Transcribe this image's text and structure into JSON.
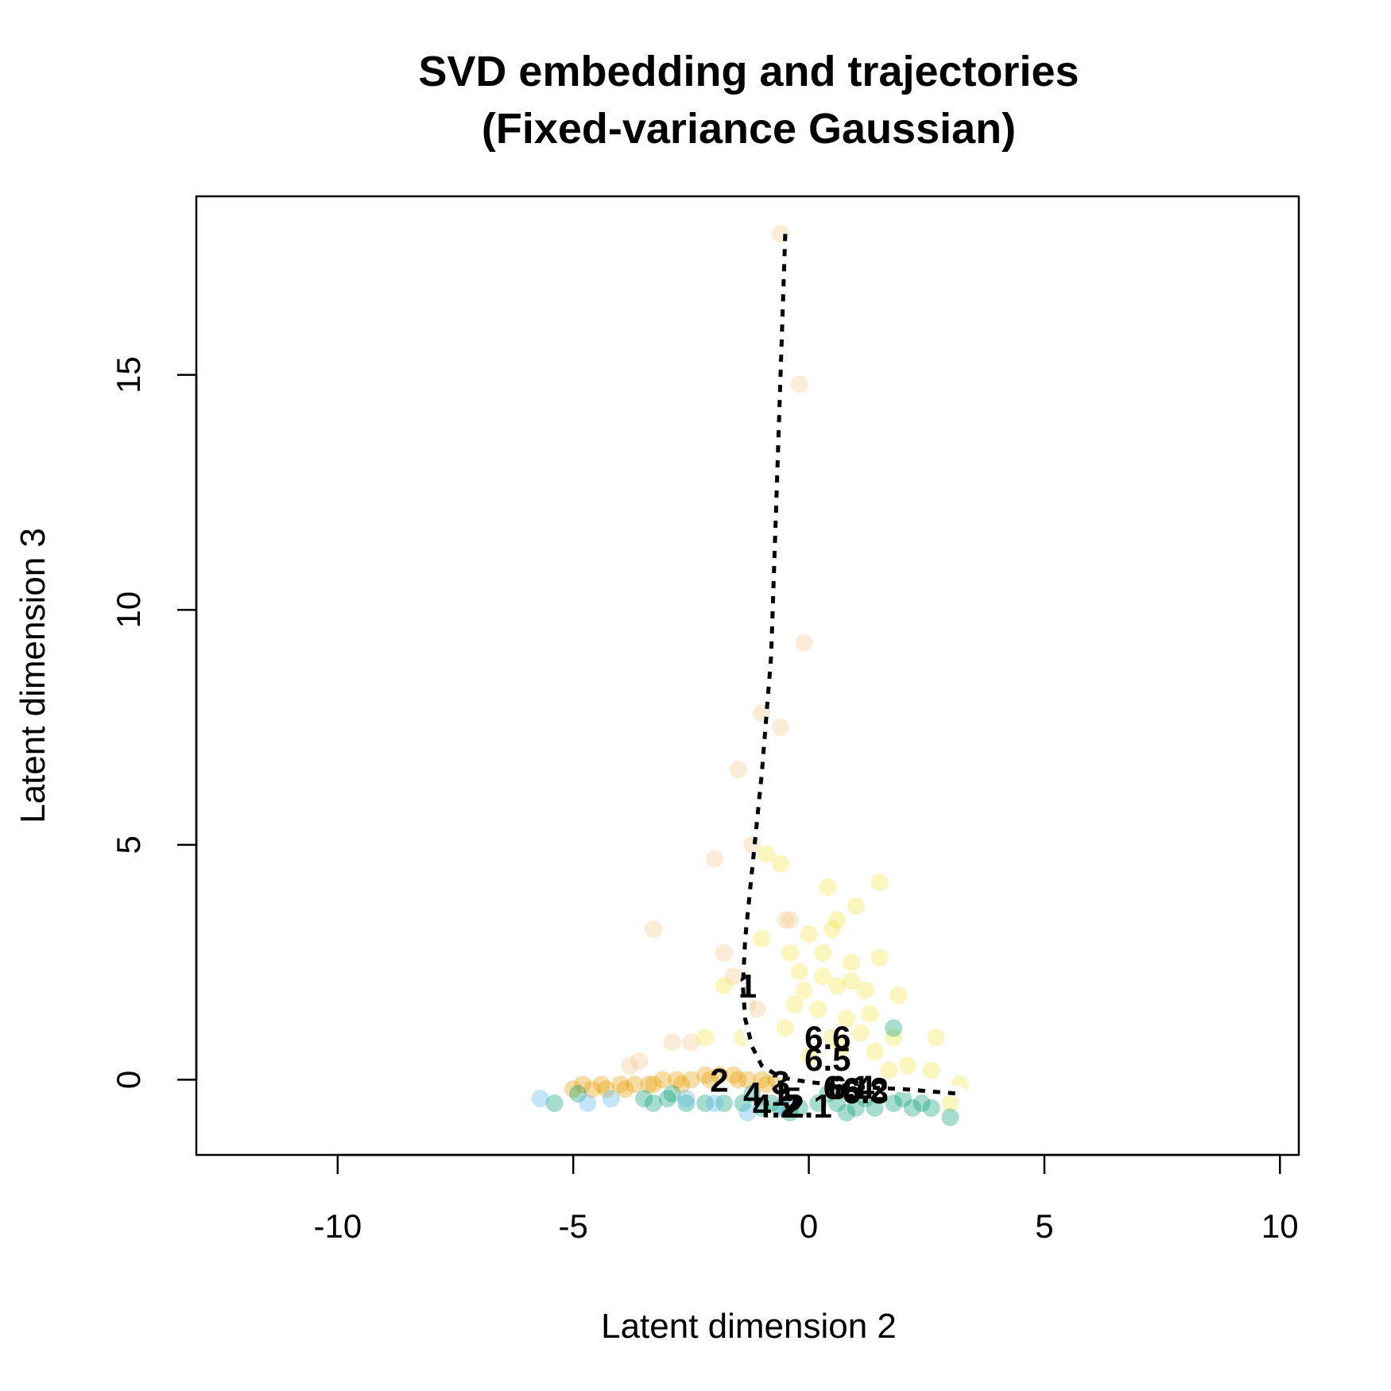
{
  "chart_data": {
    "type": "scatter",
    "title_line1": "SVD embedding and trajectories",
    "title_line2": "(Fixed-variance Gaussian)",
    "xlabel": "Latent dimension 2",
    "ylabel": "Latent dimension 3",
    "xlim": [
      -13,
      10.4
    ],
    "ylim": [
      -1.6,
      18.8
    ],
    "xticks": [
      -10,
      -5,
      0,
      5,
      10
    ],
    "yticks": [
      0,
      5,
      10,
      15
    ],
    "grid": false,
    "legend": "none",
    "colors": {
      "orange": "#E69F00",
      "yellow": "#F0E442",
      "green": "#009E73",
      "skyblue": "#56B4E9",
      "light_orange": "#F0C98A"
    },
    "series": [
      {
        "color": "#F0C98A",
        "points": [
          [
            -0.6,
            18.0
          ],
          [
            -0.2,
            14.8
          ],
          [
            -0.1,
            9.3
          ],
          [
            -1.0,
            7.8
          ],
          [
            -0.6,
            7.5
          ],
          [
            -1.5,
            6.6
          ],
          [
            -1.2,
            5.0
          ],
          [
            -2.0,
            4.7
          ],
          [
            -3.3,
            3.2
          ],
          [
            -0.5,
            3.4
          ],
          [
            -0.4,
            3.4
          ],
          [
            -1.8,
            2.7
          ],
          [
            -1.6,
            2.2
          ],
          [
            -2.9,
            0.8
          ],
          [
            -2.5,
            0.8
          ],
          [
            -3.6,
            0.4
          ],
          [
            -3.8,
            0.3
          ],
          [
            -1.3,
            1.6
          ],
          [
            -1.1,
            1.5
          ]
        ]
      },
      {
        "color": "#F0E442",
        "points": [
          [
            1.5,
            4.2
          ],
          [
            0.4,
            4.1
          ],
          [
            1.0,
            3.7
          ],
          [
            0.6,
            3.4
          ],
          [
            0.0,
            3.1
          ],
          [
            -0.6,
            4.6
          ],
          [
            -0.9,
            4.8
          ],
          [
            -1.0,
            3.0
          ],
          [
            -1.8,
            2.0
          ],
          [
            2.7,
            0.9
          ],
          [
            1.9,
            1.8
          ],
          [
            1.5,
            2.6
          ],
          [
            0.9,
            2.5
          ],
          [
            0.3,
            2.7
          ],
          [
            -0.2,
            2.3
          ],
          [
            0.6,
            2.0
          ],
          [
            1.2,
            1.9
          ],
          [
            0.2,
            1.5
          ],
          [
            0.8,
            1.3
          ],
          [
            -0.3,
            1.6
          ],
          [
            1.1,
            1.0
          ],
          [
            0.5,
            0.9
          ],
          [
            -0.5,
            1.1
          ],
          [
            1.4,
            0.6
          ],
          [
            2.1,
            0.3
          ],
          [
            2.6,
            0.2
          ],
          [
            3.2,
            -0.1
          ],
          [
            3.0,
            -0.5
          ],
          [
            -2.2,
            0.9
          ],
          [
            -1.4,
            0.9
          ],
          [
            0.0,
            0.5
          ],
          [
            1.7,
            0.2
          ],
          [
            0.3,
            2.2
          ],
          [
            1.3,
            1.4
          ],
          [
            0.7,
            0.7
          ],
          [
            -0.1,
            1.9
          ],
          [
            1.8,
            0.9
          ],
          [
            0.9,
            2.1
          ],
          [
            -0.4,
            2.7
          ],
          [
            0.5,
            3.2
          ]
        ]
      },
      {
        "color": "#E69F00",
        "points": [
          [
            -5.0,
            -0.2
          ],
          [
            -4.6,
            -0.2
          ],
          [
            -4.3,
            -0.2
          ],
          [
            -4.0,
            -0.1
          ],
          [
            -3.7,
            -0.1
          ],
          [
            -3.4,
            -0.1
          ],
          [
            -3.1,
            0.0
          ],
          [
            -2.8,
            0.0
          ],
          [
            -2.5,
            0.0
          ],
          [
            -2.2,
            0.1
          ],
          [
            -1.9,
            0.1
          ],
          [
            -1.6,
            0.1
          ],
          [
            -1.3,
            0.0
          ],
          [
            -1.0,
            0.0
          ],
          [
            -0.7,
            0.0
          ],
          [
            -4.8,
            -0.1
          ],
          [
            -4.4,
            -0.1
          ],
          [
            -3.9,
            -0.2
          ],
          [
            -3.3,
            -0.1
          ],
          [
            -2.7,
            -0.1
          ],
          [
            -2.1,
            0.0
          ],
          [
            -1.5,
            0.0
          ],
          [
            -0.9,
            -0.1
          ]
        ]
      },
      {
        "color": "#009E73",
        "points": [
          [
            -5.4,
            -0.5
          ],
          [
            -4.9,
            -0.3
          ],
          [
            -3.5,
            -0.4
          ],
          [
            -3.0,
            -0.4
          ],
          [
            -2.6,
            -0.5
          ],
          [
            -2.2,
            -0.5
          ],
          [
            -1.8,
            -0.5
          ],
          [
            -1.4,
            -0.5
          ],
          [
            -1.0,
            -0.6
          ],
          [
            -0.6,
            -0.6
          ],
          [
            -0.2,
            -0.6
          ],
          [
            0.2,
            -0.5
          ],
          [
            0.6,
            -0.5
          ],
          [
            1.0,
            -0.6
          ],
          [
            1.4,
            -0.6
          ],
          [
            1.8,
            -0.5
          ],
          [
            2.2,
            -0.6
          ],
          [
            2.6,
            -0.6
          ],
          [
            3.0,
            -0.8
          ],
          [
            1.8,
            1.1
          ],
          [
            -0.4,
            -0.7
          ],
          [
            0.8,
            -0.7
          ],
          [
            -2.9,
            -0.3
          ],
          [
            -1.2,
            -0.3
          ],
          [
            0.4,
            -0.3
          ],
          [
            2.0,
            -0.4
          ],
          [
            -3.3,
            -0.5
          ],
          [
            -0.8,
            -0.5
          ],
          [
            1.2,
            -0.4
          ],
          [
            2.4,
            -0.5
          ]
        ]
      },
      {
        "color": "#56B4E9",
        "points": [
          [
            -5.7,
            -0.4
          ],
          [
            -4.7,
            -0.5
          ],
          [
            -4.2,
            -0.4
          ],
          [
            -2.6,
            -0.4
          ],
          [
            -2.0,
            -0.5
          ],
          [
            -1.3,
            -0.7
          ],
          [
            -0.5,
            -0.6
          ]
        ]
      }
    ],
    "trajectory_dotted": [
      [
        -0.5,
        18.0
      ],
      [
        -0.6,
        15.0
      ],
      [
        -0.7,
        12.0
      ],
      [
        -0.8,
        9.0
      ],
      [
        -1.0,
        6.5
      ],
      [
        -1.2,
        4.5
      ],
      [
        -1.35,
        3.0
      ],
      [
        -1.4,
        2.0
      ],
      [
        -1.35,
        1.3
      ],
      [
        -1.2,
        0.7
      ],
      [
        -1.0,
        0.3
      ],
      [
        -0.6,
        0.05
      ],
      [
        0.0,
        -0.05
      ],
      [
        1.0,
        -0.15
      ],
      [
        2.0,
        -0.2
      ],
      [
        3.2,
        -0.3
      ]
    ],
    "trajectory_white": [
      [
        -1.4,
        1.9
      ],
      [
        -1.35,
        1.3
      ],
      [
        -1.2,
        0.75
      ],
      [
        -1.0,
        0.4
      ],
      [
        -0.6,
        0.15
      ],
      [
        0.0,
        0.05
      ],
      [
        1.0,
        -0.05
      ],
      [
        2.0,
        -0.15
      ],
      [
        3.2,
        -0.25
      ]
    ],
    "cluster_labels": [
      {
        "text": "1",
        "x": -1.3,
        "y": 2.0
      },
      {
        "text": "6.6",
        "x": 0.4,
        "y": 0.9
      },
      {
        "text": "6.5",
        "x": 0.4,
        "y": 0.45
      },
      {
        "text": "2",
        "x": -1.9,
        "y": 0.0
      },
      {
        "text": "3",
        "x": -0.6,
        "y": -0.05
      },
      {
        "text": "6.1",
        "x": 0.8,
        "y": -0.15
      },
      {
        "text": "6.4",
        "x": 0.9,
        "y": -0.15
      },
      {
        "text": "6.2",
        "x": 1.2,
        "y": -0.2
      },
      {
        "text": "6.3",
        "x": 1.2,
        "y": -0.25
      },
      {
        "text": "4.1",
        "x": -0.9,
        "y": -0.3
      },
      {
        "text": "4.2",
        "x": -0.7,
        "y": -0.55
      },
      {
        "text": "5",
        "x": -0.35,
        "y": -0.4
      },
      {
        "text": "2.1",
        "x": 0.0,
        "y": -0.55
      }
    ]
  }
}
